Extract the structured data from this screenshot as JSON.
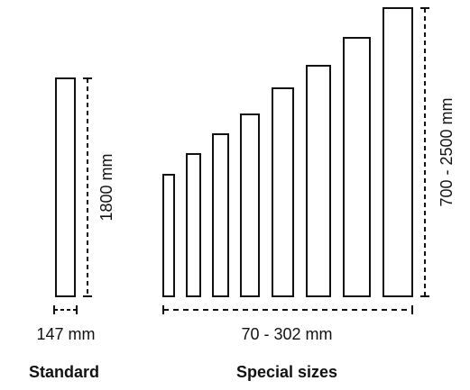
{
  "standard": {
    "height_label": "1800 mm",
    "width_label": "147 mm",
    "caption": "Standard"
  },
  "special": {
    "height_label": "700 - 2500 mm",
    "width_label": "70 - 302 mm",
    "caption": "Special sizes"
  },
  "colors": {
    "stroke": "#111111",
    "background": "#ffffff"
  }
}
